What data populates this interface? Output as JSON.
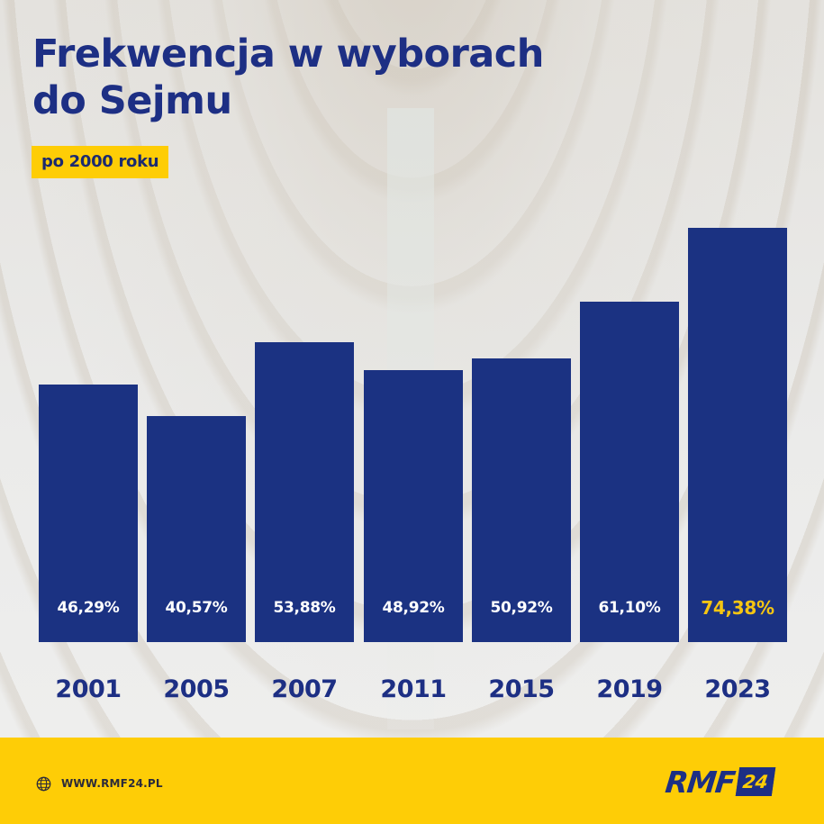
{
  "header": {
    "title_line1": "Frekwencja w wyborach",
    "title_line2": "do Sejmu",
    "subtitle": "po 2000 roku"
  },
  "colors": {
    "bar": "#1b3282",
    "title": "#1d2f84",
    "accent_yellow": "#fecd06",
    "highlight_value": "#f5c512",
    "value_text": "#ffffff"
  },
  "bars": [
    {
      "year": "2001",
      "label": "46,29%",
      "value": 46.29,
      "highlight": false
    },
    {
      "year": "2005",
      "label": "40,57%",
      "value": 40.57,
      "highlight": false
    },
    {
      "year": "2007",
      "label": "53,88%",
      "value": 53.88,
      "highlight": false
    },
    {
      "year": "2011",
      "label": "48,92%",
      "value": 48.92,
      "highlight": false
    },
    {
      "year": "2015",
      "label": "50,92%",
      "value": 50.92,
      "highlight": false
    },
    {
      "year": "2019",
      "label": "61,10%",
      "value": 61.1,
      "highlight": false
    },
    {
      "year": "2023",
      "label": "74,38%",
      "value": 74.38,
      "highlight": true
    }
  ],
  "footer": {
    "icon": "globe-icon",
    "url": "WWW.RMF24.PL",
    "logo_main": "RMF",
    "logo_badge": "24"
  },
  "chart_data": {
    "type": "bar",
    "title": "Frekwencja w wyborach do Sejmu",
    "subtitle": "po 2000 roku",
    "categories": [
      "2001",
      "2005",
      "2007",
      "2011",
      "2015",
      "2019",
      "2023"
    ],
    "values": [
      46.29,
      40.57,
      53.88,
      48.92,
      50.92,
      61.1,
      74.38
    ],
    "data_labels": [
      "46,29%",
      "40,57%",
      "53,88%",
      "48,92%",
      "50,92%",
      "61,10%",
      "74,38%"
    ],
    "xlabel": "",
    "ylabel": "",
    "unit": "%",
    "grid": false,
    "legend": null,
    "highlighted_category": "2023"
  }
}
